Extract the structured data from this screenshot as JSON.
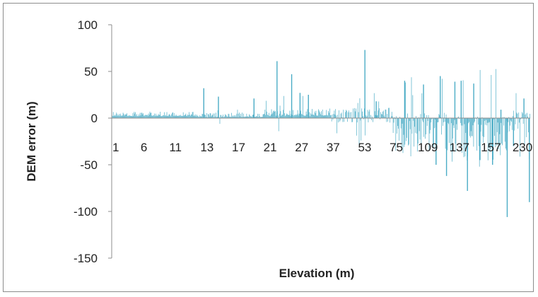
{
  "chart_data": {
    "type": "bar",
    "title": "",
    "xlabel": "Elevation (m)",
    "ylabel": "DEM  error (m)",
    "ylim": [
      -150,
      100
    ],
    "yticks": [
      100,
      50,
      0,
      -50,
      -100,
      -150
    ],
    "x_tick_labels": [
      "1",
      "6",
      "11",
      "13",
      "17",
      "21",
      "27",
      "37",
      "53",
      "75",
      "109",
      "137",
      "157",
      "230"
    ],
    "grid": false,
    "legend": "none",
    "bar_color": "#4bacc6",
    "segments": [
      {
        "range": [
          0,
          0.2
        ],
        "base": 3,
        "pos_amp": 4,
        "neg_amp": 1,
        "spike_rate": 0.01,
        "spike_max": 8
      },
      {
        "range": [
          0.2,
          0.36
        ],
        "base": 2,
        "pos_amp": 4,
        "neg_amp": 1,
        "spike_rate": 0.02,
        "spike_max": 12
      },
      {
        "range": [
          0.36,
          0.52
        ],
        "base": 4,
        "pos_amp": 6,
        "neg_amp": 2,
        "spike_rate": 0.05,
        "spike_max": 25
      },
      {
        "range": [
          0.52,
          0.67
        ],
        "base": 3,
        "pos_amp": 8,
        "neg_amp": 8,
        "spike_rate": 0.06,
        "spike_max": 30
      },
      {
        "range": [
          0.67,
          0.8
        ],
        "base": -6,
        "pos_amp": 12,
        "neg_amp": 30,
        "spike_rate": 0.08,
        "spike_max": 45
      },
      {
        "range": [
          0.8,
          0.93
        ],
        "base": -8,
        "pos_amp": 10,
        "neg_amp": 40,
        "spike_rate": 0.08,
        "spike_max": 60
      },
      {
        "range": [
          0.93,
          1.0
        ],
        "base": -6,
        "pos_amp": 14,
        "neg_amp": 25,
        "spike_rate": 0.06,
        "spike_max": 50
      }
    ],
    "notable_points": [
      {
        "x_frac": 0.22,
        "value": 32
      },
      {
        "x_frac": 0.255,
        "value": 23
      },
      {
        "x_frac": 0.34,
        "value": 21
      },
      {
        "x_frac": 0.395,
        "value": 61
      },
      {
        "x_frac": 0.43,
        "value": 47
      },
      {
        "x_frac": 0.45,
        "value": 27
      },
      {
        "x_frac": 0.47,
        "value": 25
      },
      {
        "x_frac": 0.605,
        "value": 73
      },
      {
        "x_frac": 0.632,
        "value": 18
      },
      {
        "x_frac": 0.7,
        "value": 40
      },
      {
        "x_frac": 0.745,
        "value": 36
      },
      {
        "x_frac": 0.775,
        "value": -50
      },
      {
        "x_frac": 0.785,
        "value": 45
      },
      {
        "x_frac": 0.8,
        "value": -62
      },
      {
        "x_frac": 0.82,
        "value": 39
      },
      {
        "x_frac": 0.835,
        "value": 40
      },
      {
        "x_frac": 0.85,
        "value": -78
      },
      {
        "x_frac": 0.865,
        "value": 37
      },
      {
        "x_frac": 0.88,
        "value": -45
      },
      {
        "x_frac": 0.91,
        "value": -50
      },
      {
        "x_frac": 0.93,
        "value": 9
      },
      {
        "x_frac": 0.945,
        "value": -106
      },
      {
        "x_frac": 0.96,
        "value": -30
      },
      {
        "x_frac": 0.985,
        "value": 21
      },
      {
        "x_frac": 0.998,
        "value": -90
      }
    ]
  }
}
